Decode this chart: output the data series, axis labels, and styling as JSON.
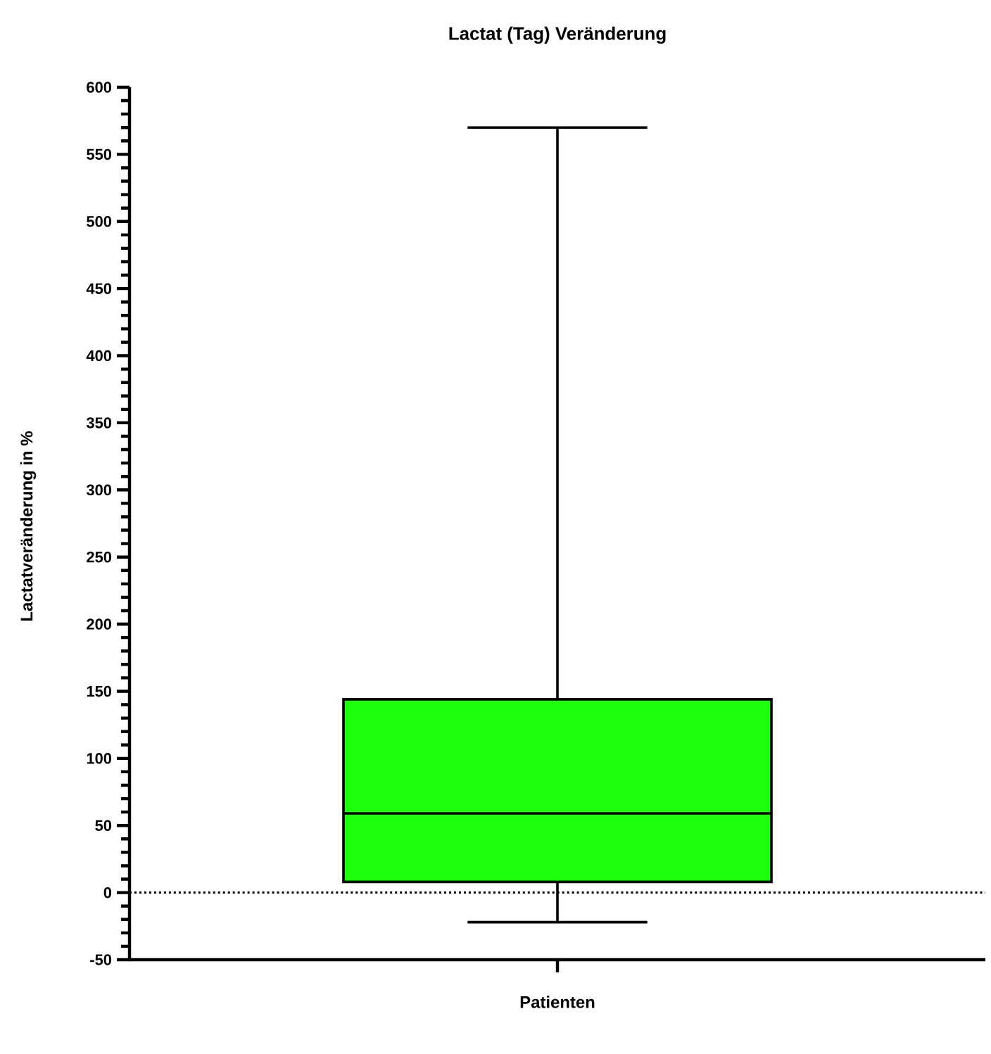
{
  "chart_data": {
    "type": "box",
    "title": "Lactat (Tag) Veränderung",
    "xlabel": "Patienten",
    "ylabel": "Lactatveränderung in %",
    "categories": [
      null
    ],
    "boxes": [
      {
        "low": -22,
        "q1": 8,
        "median": 59,
        "q3": 144,
        "high": 570
      }
    ],
    "color": "#1eff0e",
    "ylim": [
      -50,
      600
    ],
    "yticks": [
      -50,
      0,
      50,
      100,
      150,
      200,
      250,
      300,
      350,
      400,
      450,
      500,
      550,
      600
    ],
    "ref_lines": [
      {
        "axis": "y",
        "value": 0,
        "line_style": "dotted"
      }
    ],
    "grid": false
  }
}
